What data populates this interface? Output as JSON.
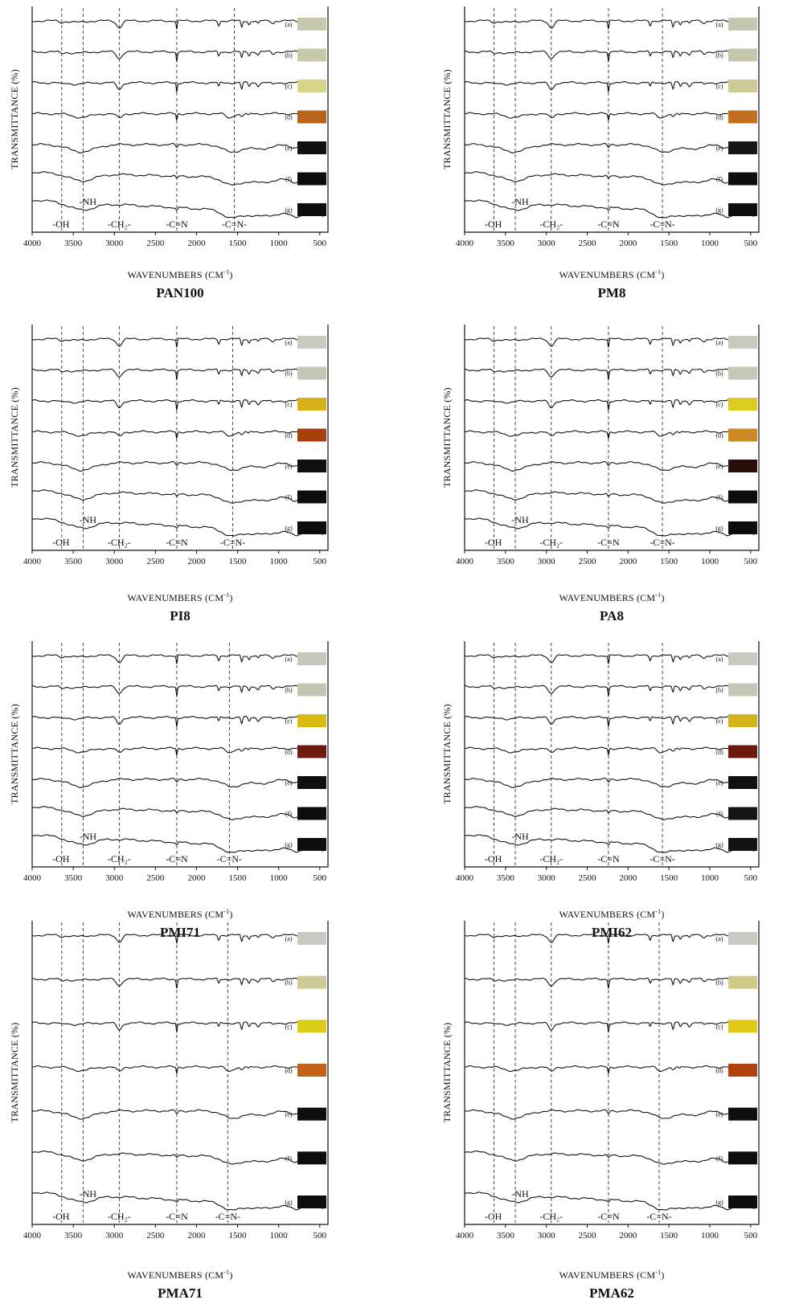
{
  "figure": {
    "ylabel": "TRANSMITTANCE (%)",
    "xlabel_main": "WAVENUMBERS (CM",
    "xlabel_sup": "-1",
    "xlabel_end": ")"
  },
  "chart_data": [
    {
      "type": "line",
      "title": "PAN100",
      "xlim": [
        4000,
        400
      ],
      "x_ticks": [
        "4000",
        "3500",
        "3000",
        "2500",
        "2000",
        "1500",
        "1000",
        "500"
      ],
      "guides": [
        3640,
        3380,
        2940,
        2240,
        1540
      ],
      "annotations": [
        {
          "text": "-OH",
          "x": 3650
        },
        {
          "text": "-CH₂-",
          "x": 2940
        },
        {
          "text": "-C≡N",
          "x": 2240
        },
        {
          "text": "-C=N-",
          "x": 1540
        },
        {
          "text": "-NH",
          "x": 3380
        }
      ],
      "series": [
        {
          "label": "(a)",
          "swatch": "#c8c8ae",
          "kind": "raw"
        },
        {
          "label": "(b)",
          "swatch": "#c9c9a8",
          "kind": "raw"
        },
        {
          "label": "(c)",
          "swatch": "#d8d488",
          "kind": "raw"
        },
        {
          "label": "(d)",
          "swatch": "#b8641c",
          "kind": "mid"
        },
        {
          "label": "(e)",
          "swatch": "#111111",
          "kind": "ox"
        },
        {
          "label": "(f)",
          "swatch": "#0d0d0d",
          "kind": "ox"
        },
        {
          "label": "(g)",
          "swatch": "#0d0d0d",
          "kind": "ox"
        }
      ]
    },
    {
      "type": "line",
      "title": "PM8",
      "xlim": [
        4000,
        400
      ],
      "x_ticks": [
        "4000",
        "3500",
        "3000",
        "2500",
        "2000",
        "1500",
        "1000",
        "500"
      ],
      "guides": [
        3640,
        3380,
        2940,
        2240,
        1580
      ],
      "annotations": [
        {
          "text": "-OH",
          "x": 3650
        },
        {
          "text": "-CH₂-",
          "x": 2940
        },
        {
          "text": "-C≡N",
          "x": 2240
        },
        {
          "text": "-C=N-",
          "x": 1580
        },
        {
          "text": "-NH",
          "x": 3380
        }
      ],
      "series": [
        {
          "label": "(a)",
          "swatch": "#c4c6b0",
          "kind": "raw"
        },
        {
          "label": "(b)",
          "swatch": "#c6c6ac",
          "kind": "raw"
        },
        {
          "label": "(c)",
          "swatch": "#cfcb96",
          "kind": "raw"
        },
        {
          "label": "(d)",
          "swatch": "#c0701e",
          "kind": "mid"
        },
        {
          "label": "(e)",
          "swatch": "#151515",
          "kind": "ox"
        },
        {
          "label": "(f)",
          "swatch": "#0e0e0e",
          "kind": "ox"
        },
        {
          "label": "(g)",
          "swatch": "#0e0e0e",
          "kind": "ox"
        }
      ]
    },
    {
      "type": "line",
      "title": "PI8",
      "xlim": [
        4000,
        400
      ],
      "x_ticks": [
        "4000",
        "3500",
        "3000",
        "2500",
        "2000",
        "1500",
        "1000",
        "500"
      ],
      "guides": [
        3640,
        3380,
        2940,
        2240,
        1560
      ],
      "annotations": [
        {
          "text": "-OH",
          "x": 3650
        },
        {
          "text": "-CH₂-",
          "x": 2940
        },
        {
          "text": "-C≡N",
          "x": 2240
        },
        {
          "text": "-C=N-",
          "x": 1560
        },
        {
          "text": "-NH",
          "x": 3380
        }
      ],
      "series": [
        {
          "label": "(a)",
          "swatch": "#c8cac0",
          "kind": "raw"
        },
        {
          "label": "(b)",
          "swatch": "#c4c6b8",
          "kind": "raw"
        },
        {
          "label": "(c)",
          "swatch": "#d6b01a",
          "kind": "raw"
        },
        {
          "label": "(d)",
          "swatch": "#a8400e",
          "kind": "mid"
        },
        {
          "label": "(e)",
          "swatch": "#101010",
          "kind": "ox"
        },
        {
          "label": "(f)",
          "swatch": "#0d0d0d",
          "kind": "ox"
        },
        {
          "label": "(g)",
          "swatch": "#0d0d0d",
          "kind": "ox"
        }
      ]
    },
    {
      "type": "line",
      "title": "PA8",
      "xlim": [
        4000,
        400
      ],
      "x_ticks": [
        "4000",
        "3500",
        "3000",
        "2500",
        "2000",
        "1500",
        "1000",
        "500"
      ],
      "guides": [
        3640,
        3380,
        2940,
        2240,
        1580
      ],
      "annotations": [
        {
          "text": "-OH",
          "x": 3650
        },
        {
          "text": "-CH₂-",
          "x": 2940
        },
        {
          "text": "-C≡N",
          "x": 2240
        },
        {
          "text": "-C=N-",
          "x": 1580
        },
        {
          "text": "-NH",
          "x": 3380
        }
      ],
      "series": [
        {
          "label": "(a)",
          "swatch": "#c9cabe",
          "kind": "raw"
        },
        {
          "label": "(b)",
          "swatch": "#c6c8b8",
          "kind": "raw"
        },
        {
          "label": "(c)",
          "swatch": "#dccc22",
          "kind": "raw"
        },
        {
          "label": "(d)",
          "swatch": "#cc8a24",
          "kind": "mid"
        },
        {
          "label": "(e)",
          "swatch": "#2a0e0a",
          "kind": "ox"
        },
        {
          "label": "(f)",
          "swatch": "#0d0d0d",
          "kind": "ox"
        },
        {
          "label": "(g)",
          "swatch": "#0d0d0d",
          "kind": "ox"
        }
      ]
    },
    {
      "type": "line",
      "title": "PMI71",
      "xlim": [
        4000,
        400
      ],
      "x_ticks": [
        "4000",
        "3500",
        "3000",
        "2500",
        "2000",
        "1500",
        "1000",
        "500"
      ],
      "guides": [
        3640,
        3380,
        2940,
        2240,
        1600
      ],
      "annotations": [
        {
          "text": "-OH",
          "x": 3650
        },
        {
          "text": "-CH₂-",
          "x": 2940
        },
        {
          "text": "-C≡N",
          "x": 2240
        },
        {
          "text": "-C=N-",
          "x": 1600
        },
        {
          "text": "-NH",
          "x": 3380
        }
      ],
      "series": [
        {
          "label": "(a)",
          "swatch": "#c6c8be",
          "kind": "raw"
        },
        {
          "label": "(b)",
          "swatch": "#c4c6b2",
          "kind": "raw"
        },
        {
          "label": "(c)",
          "swatch": "#d8ba12",
          "kind": "raw"
        },
        {
          "label": "(d)",
          "swatch": "#6e1a0e",
          "kind": "mid"
        },
        {
          "label": "(e)",
          "swatch": "#0f0f0f",
          "kind": "ox"
        },
        {
          "label": "(f)",
          "swatch": "#0d0d0d",
          "kind": "ox"
        },
        {
          "label": "(g)",
          "swatch": "#0d0d0d",
          "kind": "ox"
        }
      ]
    },
    {
      "type": "line",
      "title": "PMI62",
      "xlim": [
        4000,
        400
      ],
      "x_ticks": [
        "4000",
        "3500",
        "3000",
        "2500",
        "2000",
        "1500",
        "1000",
        "500"
      ],
      "guides": [
        3640,
        3380,
        2940,
        2240,
        1580
      ],
      "annotations": [
        {
          "text": "-OH",
          "x": 3650
        },
        {
          "text": "-CH₂-",
          "x": 2940
        },
        {
          "text": "-C≡N",
          "x": 2240
        },
        {
          "text": "-C=N-",
          "x": 1580
        },
        {
          "text": "-NH",
          "x": 3380
        }
      ],
      "series": [
        {
          "label": "(a)",
          "swatch": "#c8cac2",
          "kind": "raw"
        },
        {
          "label": "(b)",
          "swatch": "#c4c6b6",
          "kind": "raw"
        },
        {
          "label": "(c)",
          "swatch": "#d4b41c",
          "kind": "raw"
        },
        {
          "label": "(d)",
          "swatch": "#6a1810",
          "kind": "mid"
        },
        {
          "label": "(e)",
          "swatch": "#101010",
          "kind": "ox"
        },
        {
          "label": "(f)",
          "swatch": "#141414",
          "kind": "ox"
        },
        {
          "label": "(g)",
          "swatch": "#121212",
          "kind": "ox"
        }
      ]
    },
    {
      "type": "line",
      "title": "PMA71",
      "xlim": [
        4000,
        400
      ],
      "x_ticks": [
        "4000",
        "3500",
        "3000",
        "2500",
        "2000",
        "1500",
        "1000",
        "500"
      ],
      "guides": [
        3640,
        3380,
        2940,
        2240,
        1620
      ],
      "annotations": [
        {
          "text": "-OH",
          "x": 3650
        },
        {
          "text": "-CH₂-",
          "x": 2940
        },
        {
          "text": "-C≡N",
          "x": 2240
        },
        {
          "text": "-C=N-",
          "x": 1620
        },
        {
          "text": "-NH",
          "x": 3380
        }
      ],
      "series": [
        {
          "label": "(a)",
          "swatch": "#c8cac2",
          "kind": "raw"
        },
        {
          "label": "(b)",
          "swatch": "#cfcb96",
          "kind": "raw"
        },
        {
          "label": "(c)",
          "swatch": "#dccc1a",
          "kind": "raw"
        },
        {
          "label": "(d)",
          "swatch": "#c4621c",
          "kind": "mid"
        },
        {
          "label": "(e)",
          "swatch": "#0f0f0f",
          "kind": "ox"
        },
        {
          "label": "(f)",
          "swatch": "#0d0d0d",
          "kind": "ox"
        },
        {
          "label": "(g)",
          "swatch": "#0d0d0d",
          "kind": "ox"
        }
      ]
    },
    {
      "type": "line",
      "title": "PMA62",
      "xlim": [
        4000,
        400
      ],
      "x_ticks": [
        "4000",
        "3500",
        "3000",
        "2500",
        "2000",
        "1500",
        "1000",
        "500"
      ],
      "guides": [
        3640,
        3380,
        2940,
        2240,
        1620
      ],
      "annotations": [
        {
          "text": "-OH",
          "x": 3650
        },
        {
          "text": "-CH₂-",
          "x": 2940
        },
        {
          "text": "-C≡N",
          "x": 2240
        },
        {
          "text": "-C=N-",
          "x": 1620
        },
        {
          "text": "-NH",
          "x": 3380
        }
      ],
      "series": [
        {
          "label": "(a)",
          "swatch": "#c8cac2",
          "kind": "raw"
        },
        {
          "label": "(b)",
          "swatch": "#cfc98a",
          "kind": "raw"
        },
        {
          "label": "(c)",
          "swatch": "#e0c818",
          "kind": "raw"
        },
        {
          "label": "(d)",
          "swatch": "#b0420e",
          "kind": "mid"
        },
        {
          "label": "(e)",
          "swatch": "#0f0f0f",
          "kind": "ox"
        },
        {
          "label": "(f)",
          "swatch": "#0d0d0d",
          "kind": "ox"
        },
        {
          "label": "(g)",
          "swatch": "#0d0d0d",
          "kind": "ox"
        }
      ]
    }
  ]
}
